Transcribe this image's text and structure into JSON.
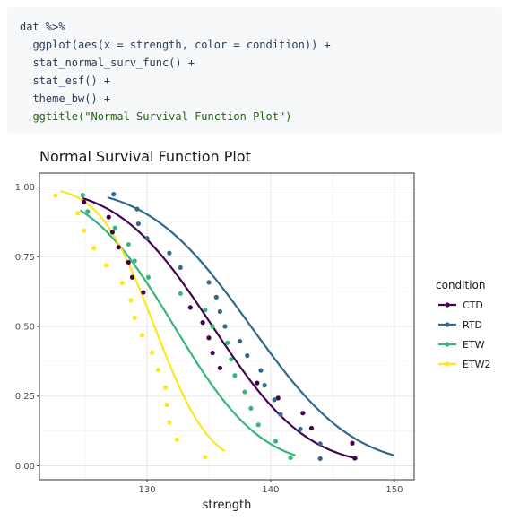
{
  "code": {
    "lines": [
      "dat %>%",
      "  ggplot(aes(x = strength, color = condition)) +",
      "  stat_normal_surv_func() +",
      "  stat_esf() +",
      "  theme_bw() +",
      "  ggtitle(\"Normal Survival Function Plot\")"
    ]
  },
  "chart_data": {
    "type": "scatter",
    "title": "Normal Survival Function Plot",
    "xlabel": "strength",
    "ylabel": "",
    "xlim": [
      121.3,
      151.6
    ],
    "ylim": [
      -0.05,
      1.05
    ],
    "x_ticks": [
      130,
      140,
      150
    ],
    "x_tick_labels": [
      "130",
      "140",
      "150"
    ],
    "y_ticks": [
      0,
      0.25,
      0.5,
      0.75,
      1.0
    ],
    "y_tick_labels": [
      "0.00",
      "0.25",
      "0.50",
      "0.75",
      "1.00"
    ],
    "grid": true,
    "legend_title": "condition",
    "legend_position": "right",
    "series": [
      {
        "name": "CTD",
        "color": "#440154",
        "curve": {
          "mu": 135.3,
          "sigma": 6.0,
          "x_range": [
            124.8,
            147.0
          ]
        },
        "points": [
          [
            124.9,
            0.946
          ],
          [
            126.9,
            0.892
          ],
          [
            127.2,
            0.838
          ],
          [
            127.7,
            0.784
          ],
          [
            128.5,
            0.73
          ],
          [
            128.8,
            0.676
          ],
          [
            129.7,
            0.622
          ],
          [
            133.5,
            0.568
          ],
          [
            134.5,
            0.514
          ],
          [
            135.0,
            0.459
          ],
          [
            135.3,
            0.405
          ],
          [
            135.9,
            0.351
          ],
          [
            138.9,
            0.297
          ],
          [
            140.6,
            0.243
          ],
          [
            142.6,
            0.189
          ],
          [
            143.3,
            0.135
          ],
          [
            146.6,
            0.081
          ],
          [
            146.8,
            0.027
          ]
        ]
      },
      {
        "name": "RTD",
        "color": "#31688e",
        "curve": {
          "mu": 138.4,
          "sigma": 6.5,
          "x_range": [
            126.8,
            150.0
          ]
        },
        "points": [
          [
            127.3,
            0.974
          ],
          [
            129.2,
            0.921
          ],
          [
            129.3,
            0.868
          ],
          [
            130.0,
            0.816
          ],
          [
            131.8,
            0.763
          ],
          [
            132.7,
            0.711
          ],
          [
            135.0,
            0.658
          ],
          [
            135.6,
            0.605
          ],
          [
            135.9,
            0.553
          ],
          [
            136.3,
            0.5
          ],
          [
            137.5,
            0.447
          ],
          [
            138.1,
            0.395
          ],
          [
            139.2,
            0.342
          ],
          [
            139.5,
            0.289
          ],
          [
            140.3,
            0.237
          ],
          [
            140.8,
            0.184
          ],
          [
            142.4,
            0.132
          ],
          [
            144.0,
            0.079
          ],
          [
            144.0,
            0.026
          ]
        ]
      },
      {
        "name": "ETW",
        "color": "#35b779",
        "curve": {
          "mu": 132.2,
          "sigma": 5.5,
          "x_range": [
            124.6,
            142.0
          ]
        },
        "points": [
          [
            124.8,
            0.971
          ],
          [
            125.2,
            0.912
          ],
          [
            127.4,
            0.853
          ],
          [
            128.5,
            0.794
          ],
          [
            129.0,
            0.735
          ],
          [
            130.1,
            0.676
          ],
          [
            132.7,
            0.618
          ],
          [
            134.7,
            0.559
          ],
          [
            135.3,
            0.5
          ],
          [
            136.5,
            0.441
          ],
          [
            136.8,
            0.382
          ],
          [
            137.1,
            0.324
          ],
          [
            137.9,
            0.265
          ],
          [
            138.4,
            0.206
          ],
          [
            139.0,
            0.147
          ],
          [
            140.4,
            0.088
          ],
          [
            141.6,
            0.029
          ]
        ]
      },
      {
        "name": "ETW2",
        "color": "#fde725",
        "curve": {
          "mu": 130.6,
          "sigma": 3.5,
          "x_range": [
            123.0,
            136.3
          ]
        },
        "points": [
          [
            122.6,
            0.969
          ],
          [
            124.4,
            0.906
          ],
          [
            124.9,
            0.844
          ],
          [
            125.7,
            0.781
          ],
          [
            126.7,
            0.719
          ],
          [
            128.0,
            0.656
          ],
          [
            128.7,
            0.594
          ],
          [
            129.0,
            0.531
          ],
          [
            129.6,
            0.469
          ],
          [
            130.4,
            0.406
          ],
          [
            130.9,
            0.344
          ],
          [
            131.5,
            0.281
          ],
          [
            131.6,
            0.219
          ],
          [
            131.8,
            0.156
          ],
          [
            132.4,
            0.094
          ],
          [
            134.7,
            0.031
          ]
        ]
      }
    ]
  }
}
